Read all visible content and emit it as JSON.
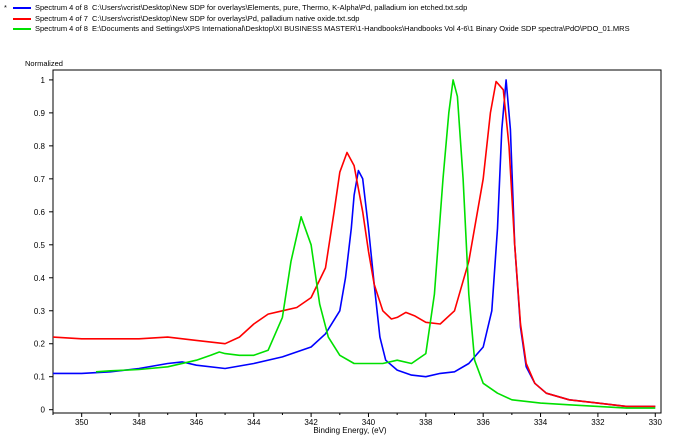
{
  "legend": {
    "entries": [
      {
        "marker": "*",
        "name": "Spectrum 4 of 8",
        "source": "C:\\Users\\vcrist\\Desktop\\New SDP for overlays\\Elements, pure, Thermo, K-Alpha\\Pd, palladium ion etched.txt.sdp",
        "color": "#0000ff"
      },
      {
        "marker": "",
        "name": "Spectrum 4 of 7",
        "source": "C:\\Users\\vcrist\\Desktop\\New SDP for overlays\\Pd, palladium native oxide.txt.sdp",
        "color": "#ff0000"
      },
      {
        "marker": "",
        "name": "Spectrum 4 of 8",
        "source": "E:\\Documents and Settings\\XPS International\\Desktop\\XI BUSINESS MASTER\\1-Handbooks\\Handbooks Vol 4-6\\1 Binary Oxide SDP spectra\\PdO\\PDO_01.MRS",
        "color": "#00e000"
      }
    ]
  },
  "chart_data": {
    "type": "line",
    "title": "",
    "xlabel": "Binding Energy, (eV)",
    "ylabel": "Normalized",
    "xlim": [
      351,
      329.8
    ],
    "ylim": [
      -0.01,
      1.03
    ],
    "x_reversed": true,
    "xticks": [
      350,
      348,
      346,
      344,
      342,
      340,
      338,
      336,
      334,
      332,
      330
    ],
    "yticks": [
      0,
      0.1,
      0.2,
      0.3,
      0.4,
      0.5,
      0.6,
      0.7,
      0.8,
      0.9,
      1
    ],
    "ytick_labels": [
      "0",
      "0.1",
      "0.2",
      "0.3",
      "0.4",
      "0.5",
      "0.6",
      "0.7",
      "0.8",
      "0.9",
      "1"
    ],
    "grid": false,
    "series": [
      {
        "name": "Spectrum 4 of 8",
        "color": "#0000ff",
        "points": [
          [
            351,
            0.11
          ],
          [
            350,
            0.11
          ],
          [
            349,
            0.115
          ],
          [
            348,
            0.125
          ],
          [
            347,
            0.14
          ],
          [
            346.5,
            0.145
          ],
          [
            346,
            0.135
          ],
          [
            345,
            0.125
          ],
          [
            344,
            0.14
          ],
          [
            343,
            0.16
          ],
          [
            342,
            0.19
          ],
          [
            341.5,
            0.23
          ],
          [
            341,
            0.3
          ],
          [
            340.8,
            0.4
          ],
          [
            340.6,
            0.55
          ],
          [
            340.5,
            0.65
          ],
          [
            340.35,
            0.725
          ],
          [
            340.2,
            0.7
          ],
          [
            340,
            0.55
          ],
          [
            339.8,
            0.38
          ],
          [
            339.6,
            0.22
          ],
          [
            339.4,
            0.15
          ],
          [
            339,
            0.12
          ],
          [
            338.5,
            0.105
          ],
          [
            338,
            0.1
          ],
          [
            337.5,
            0.11
          ],
          [
            337,
            0.115
          ],
          [
            336.5,
            0.14
          ],
          [
            336,
            0.19
          ],
          [
            335.7,
            0.3
          ],
          [
            335.5,
            0.55
          ],
          [
            335.35,
            0.85
          ],
          [
            335.2,
            1.0
          ],
          [
            335.05,
            0.85
          ],
          [
            334.9,
            0.5
          ],
          [
            334.7,
            0.25
          ],
          [
            334.5,
            0.13
          ],
          [
            334.2,
            0.08
          ],
          [
            333.8,
            0.05
          ],
          [
            333,
            0.03
          ],
          [
            332,
            0.02
          ],
          [
            331,
            0.01
          ],
          [
            330,
            0.01
          ]
        ]
      },
      {
        "name": "Spectrum 4 of 7",
        "color": "#ff0000",
        "points": [
          [
            351,
            0.22
          ],
          [
            350,
            0.215
          ],
          [
            349,
            0.215
          ],
          [
            348,
            0.215
          ],
          [
            347,
            0.22
          ],
          [
            346,
            0.21
          ],
          [
            345,
            0.2
          ],
          [
            344.5,
            0.22
          ],
          [
            344,
            0.26
          ],
          [
            343.5,
            0.29
          ],
          [
            343,
            0.3
          ],
          [
            342.5,
            0.31
          ],
          [
            342,
            0.34
          ],
          [
            341.5,
            0.43
          ],
          [
            341.2,
            0.6
          ],
          [
            341,
            0.72
          ],
          [
            340.75,
            0.78
          ],
          [
            340.5,
            0.74
          ],
          [
            340.2,
            0.6
          ],
          [
            340,
            0.48
          ],
          [
            339.8,
            0.38
          ],
          [
            339.5,
            0.3
          ],
          [
            339.2,
            0.275
          ],
          [
            339,
            0.28
          ],
          [
            338.7,
            0.295
          ],
          [
            338.4,
            0.285
          ],
          [
            338,
            0.265
          ],
          [
            337.5,
            0.26
          ],
          [
            337,
            0.3
          ],
          [
            336.5,
            0.45
          ],
          [
            336,
            0.7
          ],
          [
            335.75,
            0.9
          ],
          [
            335.55,
            0.995
          ],
          [
            335.3,
            0.97
          ],
          [
            335.1,
            0.8
          ],
          [
            334.9,
            0.5
          ],
          [
            334.7,
            0.26
          ],
          [
            334.5,
            0.14
          ],
          [
            334.2,
            0.08
          ],
          [
            333.8,
            0.05
          ],
          [
            333,
            0.03
          ],
          [
            332,
            0.02
          ],
          [
            331,
            0.01
          ],
          [
            330,
            0.01
          ]
        ]
      },
      {
        "name": "Spectrum 4 of 8",
        "color": "#00e000",
        "points": [
          [
            349.5,
            0.115
          ],
          [
            349,
            0.118
          ],
          [
            348,
            0.122
          ],
          [
            347,
            0.13
          ],
          [
            346,
            0.15
          ],
          [
            345.5,
            0.165
          ],
          [
            345.2,
            0.175
          ],
          [
            345,
            0.17
          ],
          [
            344.5,
            0.165
          ],
          [
            344,
            0.165
          ],
          [
            343.5,
            0.18
          ],
          [
            343,
            0.28
          ],
          [
            342.7,
            0.45
          ],
          [
            342.35,
            0.585
          ],
          [
            342,
            0.5
          ],
          [
            341.7,
            0.32
          ],
          [
            341.4,
            0.22
          ],
          [
            341,
            0.165
          ],
          [
            340.5,
            0.14
          ],
          [
            340,
            0.14
          ],
          [
            339.5,
            0.14
          ],
          [
            339,
            0.15
          ],
          [
            338.5,
            0.14
          ],
          [
            338,
            0.17
          ],
          [
            337.7,
            0.35
          ],
          [
            337.4,
            0.7
          ],
          [
            337.2,
            0.9
          ],
          [
            337.05,
            1.0
          ],
          [
            336.9,
            0.95
          ],
          [
            336.7,
            0.7
          ],
          [
            336.5,
            0.35
          ],
          [
            336.3,
            0.15
          ],
          [
            336,
            0.08
          ],
          [
            335.5,
            0.05
          ],
          [
            335,
            0.03
          ],
          [
            334,
            0.02
          ],
          [
            333,
            0.015
          ],
          [
            332,
            0.01
          ],
          [
            331,
            0.005
          ],
          [
            330,
            0.005
          ]
        ]
      }
    ]
  }
}
